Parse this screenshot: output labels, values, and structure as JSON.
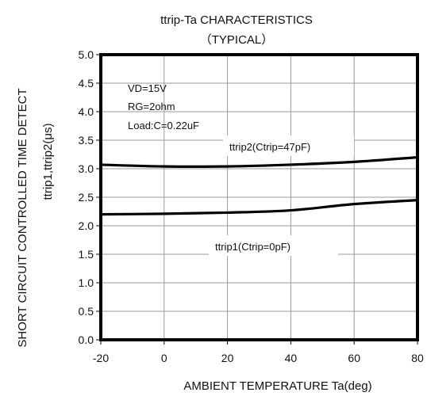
{
  "chart_data": {
    "type": "line",
    "title": "ttrip-Ta CHARACTERISTICS",
    "subtitle": "（TYPICAL）",
    "xlabel": "AMBIENT TEMPERATURE Ta(deg)",
    "ylabel_line1": "SHORT CIRCUIT CONTROLLED TIME DETECT",
    "ylabel_line2": "ttrip1,ttrip2(μs)",
    "xlim": [
      -20,
      80
    ],
    "ylim": [
      0,
      5
    ],
    "x_ticks": [
      -20,
      0,
      20,
      40,
      60,
      80
    ],
    "y_ticks": [
      "0.0",
      "0.5",
      "1.0",
      "1.5",
      "2.0",
      "2.5",
      "3.0",
      "3.5",
      "4.0",
      "4.5",
      "5.0"
    ],
    "grid": true,
    "conditions": [
      "VD=15V",
      "RG=2ohm",
      "Load:C=0.22uF"
    ],
    "series": [
      {
        "name": "ttrip2(Ctrip=47pF)",
        "x": [
          -20,
          0,
          20,
          40,
          60,
          80
        ],
        "values": [
          3.07,
          3.04,
          3.04,
          3.07,
          3.12,
          3.2
        ]
      },
      {
        "name": "ttrip1(Ctrip=0pF)",
        "x": [
          -20,
          0,
          20,
          40,
          60,
          80
        ],
        "values": [
          2.2,
          2.21,
          2.23,
          2.27,
          2.38,
          2.45
        ]
      }
    ],
    "line_color": "#000000",
    "grid_color": "#9a9a9a"
  }
}
